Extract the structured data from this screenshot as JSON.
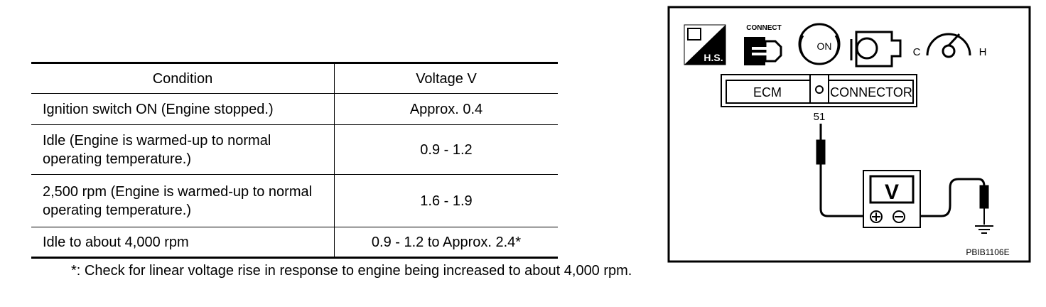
{
  "table": {
    "header": [
      "Condition",
      "Voltage V"
    ],
    "rows": [
      [
        "Ignition switch ON (Engine stopped.)",
        "Approx. 0.4"
      ],
      [
        "Idle (Engine is warmed-up to normal operating temperature.)",
        "0.9 - 1.2"
      ],
      [
        "2,500 rpm (Engine is warmed-up to normal operating temperature.)",
        "1.6 - 1.9"
      ],
      [
        "Idle to about 4,000 rpm",
        "0.9 - 1.2 to Approx. 2.4*"
      ]
    ],
    "footnote": "*: Check for linear voltage rise in response to engine being increased to about 4,000 rpm."
  },
  "diagram": {
    "icons": {
      "hs": "H.S.",
      "connect": "CONNECT",
      "key": "ON",
      "cold": "C",
      "hot": "H"
    },
    "connector": {
      "left": "ECM",
      "right": "CONNECTOR",
      "terminal": "51"
    },
    "meter": "V",
    "code": "PBIB1106E"
  }
}
